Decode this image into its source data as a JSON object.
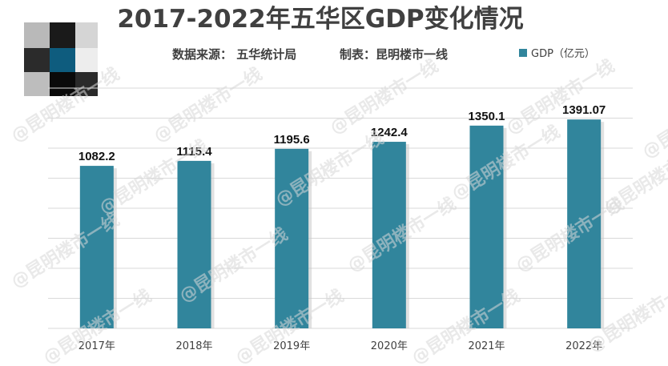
{
  "header": {
    "title": "2017-2022年五华区GDP变化情况",
    "source": "数据来源：  五华统计局",
    "maker": "制表：昆明楼市一线"
  },
  "watermark": {
    "text": "@昆明楼市一线"
  },
  "colors": {
    "bar": "#31859C",
    "grid": "#d9d9d9",
    "text": "#404040"
  },
  "chart_data": {
    "type": "bar",
    "categories": [
      "2017年",
      "2018年",
      "2019年",
      "2020年",
      "2021年",
      "2022年"
    ],
    "series": [
      {
        "name": "GDP（亿元）",
        "values": [
          1082.2,
          1115.4,
          1195.6,
          1242.4,
          1350.1,
          1391.07
        ],
        "labels": [
          "1082.2",
          "1115.4",
          "1195.6",
          "1242.4",
          "1350.1",
          "1391.07"
        ]
      }
    ],
    "title": "2017-2022年五华区GDP变化情况",
    "ylim": [
      0,
      1600
    ],
    "grid": true,
    "legend_position": "top-right"
  }
}
